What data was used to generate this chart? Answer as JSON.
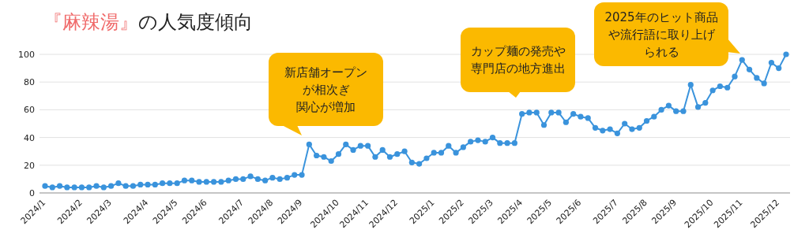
{
  "chart_data": {
    "type": "line",
    "title": "『麻辣湯』の人気度傾向",
    "categories": [
      "2024/1",
      null,
      null,
      null,
      null,
      "2024/2",
      null,
      null,
      null,
      "2024/3",
      null,
      null,
      null,
      null,
      "2024/4",
      null,
      null,
      null,
      "2024/5",
      null,
      null,
      null,
      "2024/6",
      null,
      null,
      null,
      null,
      "2024/7",
      null,
      null,
      null,
      "2024/8",
      null,
      null,
      null,
      "2024/9",
      null,
      null,
      null,
      null,
      "2024/10",
      null,
      null,
      null,
      "2024/11",
      null,
      null,
      null,
      "2024/12",
      null,
      null,
      null,
      null,
      "2025/1",
      null,
      null,
      null,
      "2025/2",
      null,
      null,
      null,
      "2025/3",
      null,
      null,
      null,
      "2025/4",
      null,
      null,
      null,
      "2025/5",
      null,
      null,
      null,
      "2025/6",
      null,
      null,
      null,
      null,
      "2025/7",
      null,
      null,
      null,
      "2025/8",
      null,
      null,
      null,
      "2025/9",
      null,
      null,
      null,
      null,
      "2025/10",
      null,
      null,
      null,
      "2025/11",
      null,
      null,
      null,
      null,
      "2025/12",
      null
    ],
    "series": [
      {
        "color": "#3a93dc",
        "values": [
          5,
          4,
          5,
          4,
          4,
          4,
          4,
          5,
          4,
          5,
          7,
          5,
          5,
          6,
          6,
          6,
          7,
          7,
          7,
          9,
          9,
          8,
          8,
          8,
          8,
          9,
          10,
          10,
          12,
          10,
          9,
          11,
          10,
          11,
          13,
          13,
          35,
          27,
          26,
          23,
          28,
          35,
          31,
          34,
          34,
          26,
          31,
          26,
          28,
          30,
          22,
          21,
          25,
          29,
          29,
          34,
          29,
          33,
          37,
          38,
          37,
          40,
          36,
          36,
          36,
          57,
          58,
          58,
          49,
          58,
          58,
          51,
          57,
          55,
          54,
          47,
          45,
          46,
          43,
          50,
          46,
          47,
          52,
          55,
          60,
          63,
          59,
          59,
          78,
          62,
          65,
          74,
          77,
          76,
          84,
          96,
          89,
          83,
          79,
          94,
          90,
          100
        ]
      }
    ],
    "ylim": [
      0,
      100
    ],
    "yticks": [
      0,
      20,
      40,
      60,
      80,
      100
    ],
    "grid": "y",
    "marker": "circle",
    "line_style": "solid",
    "annotations": [
      "新店舗オープンが相次ぎ関心が増加",
      "カップ麺の発売や専門店の地方進出",
      "2025年のヒット商品や流行語に取り上げられる"
    ]
  }
}
